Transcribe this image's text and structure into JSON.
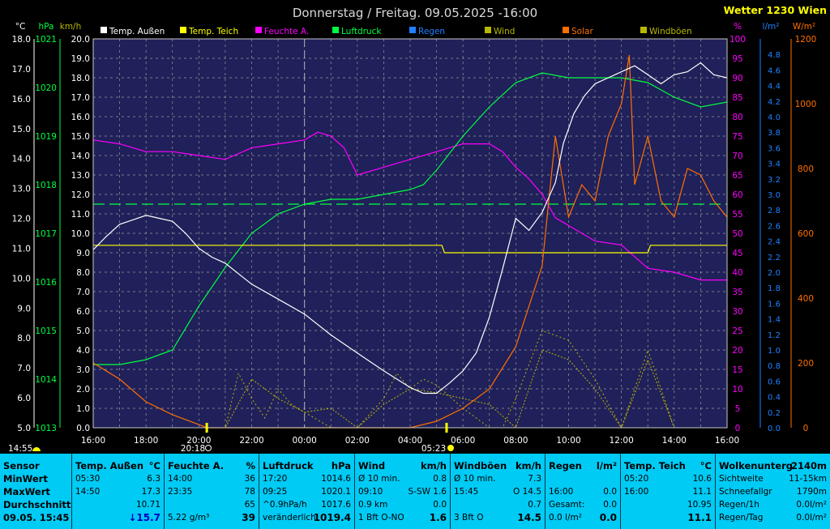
{
  "title": "Donnerstag / Freitag. 09.05.2025 -16:00",
  "brand": "Wetter 1230 Wien",
  "colors": {
    "background": "#000000",
    "plot_bg": "#20205a",
    "temp_outside": "#ffffff",
    "temp_pond": "#ffff00",
    "humidity": "#ff00ff",
    "pressure": "#00ff40",
    "rain": "#2080ff",
    "wind": "#b8b800",
    "solar": "#ff7000",
    "gusts": "#b8b800",
    "table_bg": "#00cbf5"
  },
  "chart_data": {
    "type": "line",
    "legend": [
      {
        "name": "Temp. Außen",
        "color": "#ffffff"
      },
      {
        "name": "Temp. Teich",
        "color": "#ffff00"
      },
      {
        "name": "Feuchte A.",
        "color": "#ff00ff"
      },
      {
        "name": "Luftdruck",
        "color": "#00ff40"
      },
      {
        "name": "Regen",
        "color": "#2080ff"
      },
      {
        "name": "Wind",
        "color": "#b8b800"
      },
      {
        "name": "Solar",
        "color": "#ff7000"
      },
      {
        "name": "Windböen",
        "color": "#b8b800"
      }
    ],
    "axes": {
      "temp": {
        "unit": "°C",
        "range": [
          5.0,
          18.0
        ],
        "ticks": [
          "18.0",
          "17.0",
          "16.0",
          "15.0",
          "14.0",
          "13.0",
          "12.0",
          "11.0",
          "10.0",
          "9.0",
          "8.0",
          "7.0",
          "6.0",
          "5.0"
        ]
      },
      "pressure": {
        "unit": "hPa",
        "range": [
          1013,
          1021
        ],
        "ticks": [
          "1021",
          "1020",
          "1019",
          "1018",
          "1017",
          "1016",
          "1015",
          "1014",
          "1013"
        ]
      },
      "wind": {
        "unit": "km/h",
        "range": [
          0,
          20
        ],
        "ticks": [
          "20.0",
          "19.0",
          "18.0",
          "17.0",
          "16.0",
          "15.0",
          "14.0",
          "13.0",
          "12.0",
          "11.0",
          "10.0",
          "9.0",
          "8.0",
          "7.0",
          "6.0",
          "5.0",
          "4.0",
          "3.0",
          "2.0",
          "1.0",
          "0.0"
        ]
      },
      "humidity": {
        "unit": "%",
        "range": [
          0,
          100
        ],
        "ticks": [
          "100",
          "95",
          "90",
          "85",
          "80",
          "75",
          "70",
          "65",
          "60",
          "55",
          "50",
          "45",
          "40",
          "35",
          "30",
          "25",
          "20",
          "15",
          "10",
          "5",
          "0"
        ]
      },
      "rain": {
        "unit": "l/m²",
        "range": [
          0,
          5.0
        ],
        "ticks": [
          "4.8",
          "4.6",
          "4.4",
          "4.2",
          "4.0",
          "3.8",
          "3.6",
          "3.4",
          "3.2",
          "3.0",
          "2.8",
          "2.6",
          "2.4",
          "2.2",
          "2.0",
          "1.8",
          "1.6",
          "1.4",
          "1.2",
          "1.0",
          "0.8",
          "0.6",
          "0.4",
          "0.2",
          "0.0"
        ]
      },
      "solar": {
        "unit": "W/m²",
        "range": [
          0,
          1200
        ],
        "ticks": [
          "1200",
          "1000",
          "800",
          "600",
          "400",
          "200",
          "0"
        ]
      }
    },
    "x_ticks": [
      "16:00",
      "18:00",
      "20:00",
      "22:00",
      "00:00",
      "02:00",
      "04:00",
      "06:00",
      "08:00",
      "10:00",
      "12:00",
      "14:00",
      "16:00"
    ],
    "x_range_hours": [
      0,
      24
    ],
    "pressure_average": 1017.6,
    "markers": {
      "sunrise_label": "14:55",
      "sunset_label": "20:18",
      "moonrise_label": "05:23",
      "sunset_hour": 4.3,
      "moonrise_hour": 13.38
    },
    "series": {
      "temp_outside": {
        "x": [
          0,
          0.5,
          1,
          1.5,
          2,
          2.5,
          3,
          3.5,
          4,
          4.5,
          5,
          6,
          7,
          8,
          9,
          10,
          11,
          12,
          12.5,
          13,
          13.5,
          14,
          14.5,
          15,
          15.5,
          16,
          16.5,
          17,
          17.5,
          17.8,
          18.2,
          18.6,
          19,
          19.5,
          20,
          20.5,
          21,
          21.5,
          22,
          22.5,
          23,
          23.5,
          24
        ],
        "y": [
          10.95,
          11.4,
          11.8,
          11.95,
          12.1,
          12.0,
          11.9,
          11.5,
          11.0,
          10.7,
          10.5,
          9.8,
          9.3,
          8.8,
          8.1,
          7.5,
          6.9,
          6.35,
          6.15,
          6.15,
          6.5,
          6.9,
          7.5,
          8.7,
          10.3,
          12.0,
          11.6,
          12.2,
          13.2,
          14.5,
          15.5,
          16.1,
          16.5,
          16.7,
          16.9,
          17.1,
          16.8,
          16.5,
          16.8,
          16.9,
          17.2,
          16.8,
          16.7
        ]
      },
      "temp_pond": {
        "x": [
          0,
          13.2,
          13.3,
          21,
          21.1,
          24
        ],
        "y": [
          11.1,
          11.1,
          10.85,
          10.85,
          11.1,
          11.1
        ]
      },
      "humidity": {
        "x": [
          0,
          1,
          2,
          3,
          4,
          5,
          6,
          7,
          8,
          8.5,
          9,
          9.5,
          10,
          11,
          12,
          13,
          14,
          15,
          15.5,
          16,
          16.5,
          17,
          17.5,
          18,
          18.5,
          19,
          20,
          21,
          22,
          23,
          24
        ],
        "y": [
          74,
          73,
          71,
          71,
          70,
          69,
          72,
          73,
          74,
          76,
          75,
          72,
          65,
          67,
          69,
          71,
          73,
          73,
          71,
          67,
          64,
          60,
          54,
          52,
          50,
          48,
          47,
          41,
          40,
          38,
          38
        ]
      },
      "pressure": {
        "x": [
          0,
          1,
          2,
          3,
          4,
          5,
          6,
          7,
          8,
          9,
          10,
          11,
          12,
          12.5,
          13,
          14,
          15,
          16,
          17,
          18,
          19,
          20,
          21,
          22,
          23,
          24
        ],
        "y": [
          1014.3,
          1014.3,
          1014.4,
          1014.6,
          1015.5,
          1016.3,
          1017.0,
          1017.4,
          1017.6,
          1017.7,
          1017.7,
          1017.8,
          1017.9,
          1018.0,
          1018.3,
          1019.0,
          1019.6,
          1020.1,
          1020.3,
          1020.2,
          1020.2,
          1020.2,
          1020.1,
          1019.8,
          1019.6,
          1019.7
        ]
      },
      "solar": {
        "x": [
          0,
          1,
          2,
          3,
          4,
          4.3,
          12,
          13,
          14,
          15,
          16,
          17,
          17.5,
          18,
          18.5,
          19,
          19.5,
          20,
          20.3,
          20.5,
          21,
          21.5,
          22,
          22.5,
          23,
          23.5,
          24
        ],
        "y": [
          200,
          150,
          80,
          40,
          10,
          0,
          0,
          20,
          60,
          120,
          250,
          500,
          900,
          650,
          750,
          700,
          900,
          1000,
          1150,
          750,
          900,
          700,
          650,
          800,
          780,
          700,
          650
        ]
      },
      "wind": {
        "x": [
          0,
          5,
          6,
          7,
          8,
          9,
          10,
          11,
          12,
          13,
          14,
          15,
          16,
          17,
          18,
          19,
          20,
          21,
          22,
          23,
          24
        ],
        "y": [
          0,
          0,
          2.5,
          1.5,
          0.8,
          1.0,
          0,
          1.2,
          2.0,
          1.8,
          1.5,
          1.2,
          0,
          4.0,
          3.5,
          2.0,
          0,
          3.5,
          0,
          0,
          0
        ]
      },
      "gusts": {
        "x": [
          0,
          5,
          5.5,
          6,
          6.5,
          7,
          7.5,
          8,
          9,
          10,
          11,
          11.5,
          12,
          12.5,
          13,
          14,
          15,
          15.5,
          16,
          17,
          18,
          19,
          20,
          21,
          22,
          23,
          24
        ],
        "y": [
          0,
          0,
          2.8,
          1.5,
          0.5,
          2.0,
          1.2,
          0.8,
          0,
          0,
          1.5,
          2.8,
          2.0,
          2.5,
          2.2,
          1.0,
          0,
          0,
          1.5,
          5.0,
          4.5,
          2.5,
          0,
          4.0,
          0,
          0,
          0
        ]
      }
    }
  },
  "table": {
    "columns": [
      {
        "header": [
          "Sensor"
        ],
        "rows": [
          [
            "MinWert"
          ],
          [
            "MaxWert"
          ],
          [
            "Durchschnitt"
          ],
          [
            "09.05. 15:45"
          ]
        ]
      },
      {
        "header": [
          "Temp. Außen",
          "°C"
        ],
        "rows": [
          [
            "05:30",
            "6.3"
          ],
          [
            "14:50",
            "17.3"
          ],
          [
            "",
            "10.71"
          ],
          [
            "",
            "↓15.7"
          ]
        ]
      },
      {
        "header": [
          "Feuchte A.",
          "%"
        ],
        "rows": [
          [
            "14:00",
            "36"
          ],
          [
            "23:35",
            "78"
          ],
          [
            "",
            "65"
          ],
          [
            "5.22 g/m³",
            "39"
          ]
        ]
      },
      {
        "header": [
          "Luftdruck",
          "hPa"
        ],
        "rows": [
          [
            "17:20",
            "1014.6"
          ],
          [
            "09:25",
            "1020.1"
          ],
          [
            "^0.9hPa/h",
            "1017.6"
          ],
          [
            "veränderlich",
            "1019.4"
          ]
        ]
      },
      {
        "header": [
          "Wind",
          "km/h"
        ],
        "rows": [
          [
            "Ø 10 min.",
            "0.8"
          ],
          [
            "09:10",
            "S-SW 1.6"
          ],
          [
            "0.9 km",
            "0.0"
          ],
          [
            "1 Bft O-NO",
            "1.6"
          ]
        ]
      },
      {
        "header": [
          "Windböen",
          "km/h"
        ],
        "rows": [
          [
            "Ø 10 min.",
            "7.3"
          ],
          [
            "15:45",
            "O 14.5"
          ],
          [
            "",
            "0.7"
          ],
          [
            "3 Bft O",
            "14.5"
          ]
        ]
      },
      {
        "header": [
          "Regen",
          "l/m²"
        ],
        "rows": [
          [
            "",
            ""
          ],
          [
            "16:00",
            "0.0"
          ],
          [
            "Gesamt:",
            "0.0"
          ],
          [
            "0.0 l/m²",
            "0.0"
          ]
        ]
      },
      {
        "header": [
          "Temp. Teich",
          "°C"
        ],
        "rows": [
          [
            "05:20",
            "10.6"
          ],
          [
            "16:00",
            "11.1"
          ],
          [
            "",
            "10.95"
          ],
          [
            "",
            "11.1"
          ]
        ]
      },
      {
        "header": [
          "Wolkenunterg",
          "2140m"
        ],
        "rows": [
          [
            "Sichtweite",
            "11-15km"
          ],
          [
            "Schneefallgr",
            "1790m"
          ],
          [
            "Regen/1h",
            "0.0l/m²"
          ],
          [
            "Regen/Tag",
            "0.0l/m²"
          ]
        ]
      }
    ]
  }
}
